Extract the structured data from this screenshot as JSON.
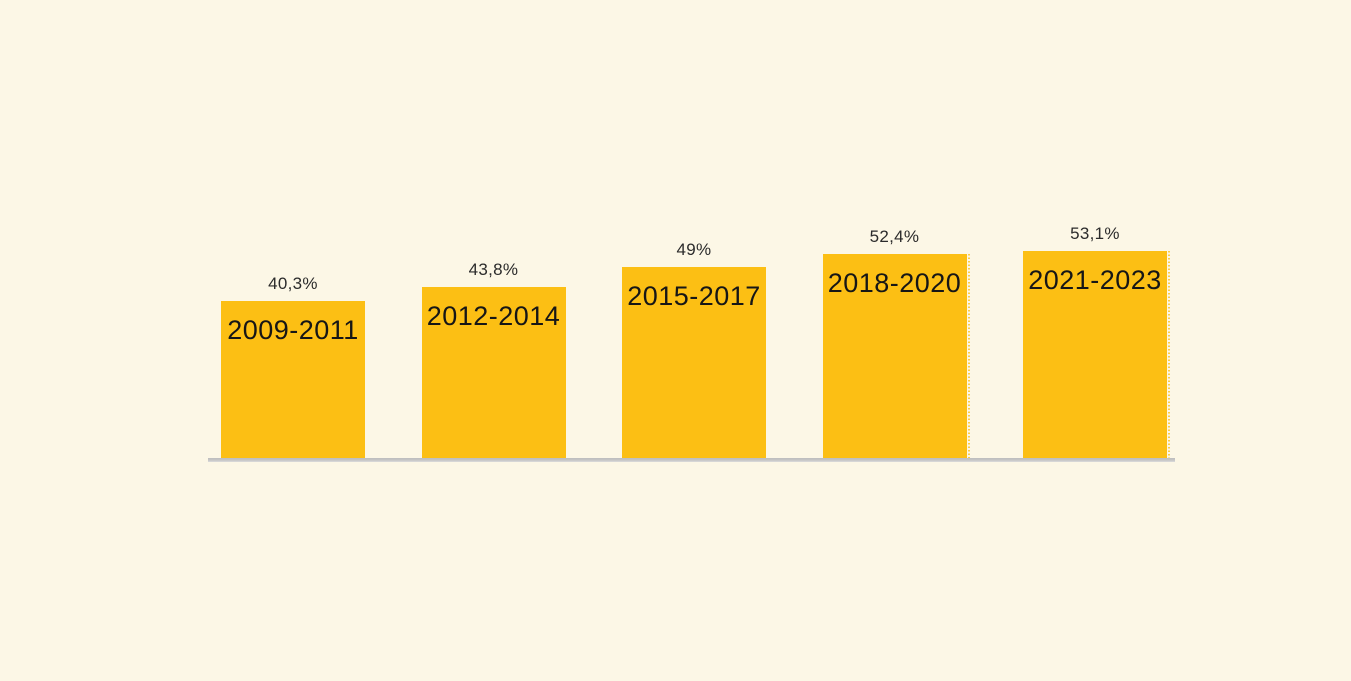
{
  "page": {
    "background_color": "#FCF7E6"
  },
  "chart_data": {
    "type": "bar",
    "title": "",
    "xlabel": "",
    "ylabel": "",
    "categories": [
      "2009-2011",
      "2012-2014",
      "2015-2017",
      "2018-2020",
      "2021-2023"
    ],
    "values": [
      40.3,
      43.8,
      49,
      52.4,
      53.1
    ],
    "value_labels": [
      "40,3%",
      "43,8%",
      "49%",
      "52,4%",
      "53,1%"
    ],
    "ylim": [
      0,
      60
    ],
    "grid": false,
    "legend_position": "none",
    "bar_color": "#FCBF14",
    "baseline_color": "#C6C6C6",
    "category_label_color": "#161616",
    "value_label_color": "#2B2B2B",
    "dotted_right_edge_bar_indices": [
      3,
      4
    ]
  }
}
